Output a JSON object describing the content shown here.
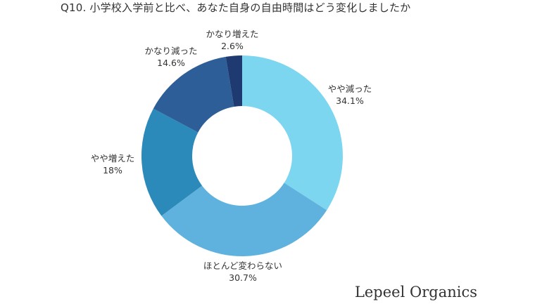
{
  "chart_data": {
    "type": "pie",
    "title": "Q10. 小学校入学前と比べ、あなた自身の自由時間はどう変化しましたか",
    "slices": [
      {
        "label": "やや減った",
        "value": 34.1,
        "value_label": "34.1%",
        "color": "#7CD6F0"
      },
      {
        "label": "ほとんど変わらない",
        "value": 30.7,
        "value_label": "30.7%",
        "color": "#5FB2DE"
      },
      {
        "label": "やや増えた",
        "value": 18,
        "value_label": "18%",
        "color": "#2C8ABA"
      },
      {
        "label": "かなり減った",
        "value": 14.6,
        "value_label": "14.6%",
        "color": "#2E5E98"
      },
      {
        "label": "かなり増えた",
        "value": 2.6,
        "value_label": "2.6%",
        "color": "#1E3A70"
      }
    ]
  },
  "brand": "Lepeel Organics"
}
